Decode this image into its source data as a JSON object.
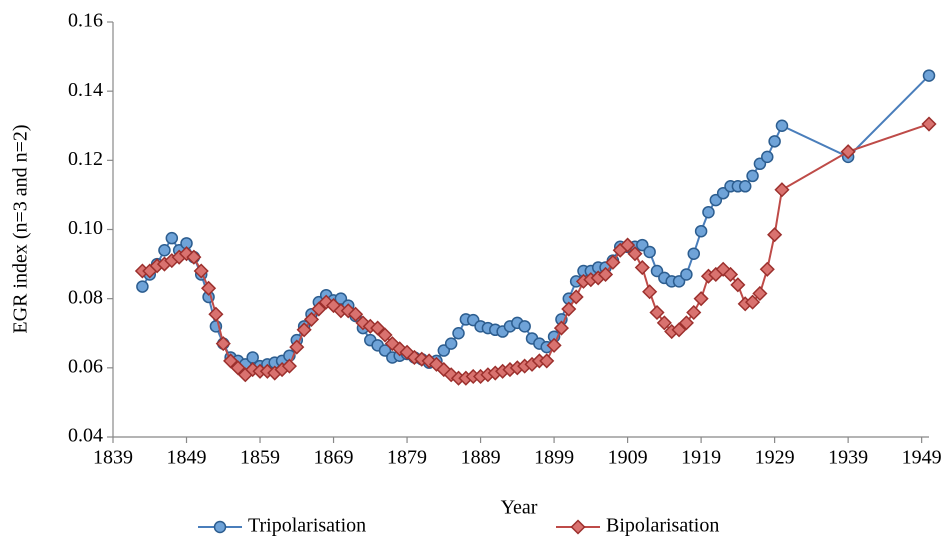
{
  "chart_data": {
    "type": "line",
    "x_label": "Year",
    "y_label": "EGR index (n=3 and n=2)",
    "x": [
      1843,
      1844,
      1845,
      1846,
      1847,
      1848,
      1849,
      1850,
      1851,
      1852,
      1853,
      1854,
      1855,
      1856,
      1857,
      1858,
      1859,
      1860,
      1861,
      1862,
      1863,
      1864,
      1865,
      1866,
      1867,
      1868,
      1869,
      1870,
      1871,
      1872,
      1873,
      1874,
      1875,
      1876,
      1877,
      1878,
      1879,
      1880,
      1881,
      1882,
      1883,
      1884,
      1885,
      1886,
      1887,
      1888,
      1889,
      1890,
      1891,
      1892,
      1893,
      1894,
      1895,
      1896,
      1897,
      1898,
      1899,
      1900,
      1901,
      1902,
      1903,
      1904,
      1905,
      1906,
      1907,
      1908,
      1909,
      1910,
      1911,
      1912,
      1913,
      1914,
      1915,
      1916,
      1917,
      1918,
      1919,
      1920,
      1921,
      1922,
      1923,
      1924,
      1925,
      1926,
      1927,
      1928,
      1929,
      1930,
      1939,
      1950
    ],
    "series": [
      {
        "name": "Tripolarisation",
        "color": "#4a7ebb",
        "marker_fill": "#6fa3d8",
        "marker_stroke": "#2c5d8f",
        "marker": "circle",
        "values": [
          0.0835,
          0.087,
          0.09,
          0.094,
          0.0975,
          0.094,
          0.096,
          0.092,
          0.087,
          0.0805,
          0.072,
          0.067,
          0.063,
          0.062,
          0.061,
          0.063,
          0.0605,
          0.061,
          0.0615,
          0.062,
          0.0635,
          0.068,
          0.072,
          0.0755,
          0.079,
          0.081,
          0.0795,
          0.08,
          0.078,
          0.075,
          0.0715,
          0.068,
          0.0665,
          0.065,
          0.063,
          0.0635,
          0.064,
          0.063,
          0.0625,
          0.0615,
          0.062,
          0.065,
          0.067,
          0.07,
          0.074,
          0.0738,
          0.072,
          0.0715,
          0.071,
          0.0705,
          0.072,
          0.073,
          0.072,
          0.0685,
          0.067,
          0.066,
          0.069,
          0.074,
          0.08,
          0.085,
          0.088,
          0.088,
          0.089,
          0.089,
          0.091,
          0.095,
          0.095,
          0.095,
          0.0955,
          0.0935,
          0.088,
          0.086,
          0.085,
          0.085,
          0.087,
          0.093,
          0.0995,
          0.105,
          0.1085,
          0.1105,
          0.1125,
          0.1125,
          0.1125,
          0.1155,
          0.119,
          0.121,
          0.1255,
          0.13,
          0.121,
          0.1445
        ]
      },
      {
        "name": "Bipolarisation",
        "color": "#be4b48",
        "marker_fill": "#d9726f",
        "marker_stroke": "#9c302d",
        "marker": "diamond",
        "values": [
          0.088,
          0.088,
          0.0895,
          0.09,
          0.091,
          0.092,
          0.093,
          0.092,
          0.088,
          0.083,
          0.0755,
          0.067,
          0.062,
          0.06,
          0.058,
          0.0595,
          0.059,
          0.059,
          0.0585,
          0.0595,
          0.0605,
          0.066,
          0.071,
          0.074,
          0.077,
          0.079,
          0.078,
          0.0765,
          0.0765,
          0.0755,
          0.073,
          0.072,
          0.0715,
          0.0695,
          0.067,
          0.0655,
          0.0645,
          0.063,
          0.0625,
          0.062,
          0.061,
          0.0595,
          0.058,
          0.057,
          0.057,
          0.0575,
          0.0575,
          0.058,
          0.0585,
          0.059,
          0.0595,
          0.06,
          0.0605,
          0.061,
          0.062,
          0.062,
          0.0665,
          0.0715,
          0.077,
          0.0805,
          0.085,
          0.0855,
          0.086,
          0.087,
          0.0905,
          0.094,
          0.0955,
          0.093,
          0.089,
          0.082,
          0.076,
          0.073,
          0.0705,
          0.071,
          0.073,
          0.076,
          0.08,
          0.0865,
          0.087,
          0.0885,
          0.087,
          0.084,
          0.0785,
          0.079,
          0.0815,
          0.0885,
          0.0985,
          0.1115,
          0.1225,
          0.1305
        ]
      }
    ],
    "xlim": [
      1839,
      1950
    ],
    "xticks": [
      1839,
      1849,
      1859,
      1869,
      1879,
      1889,
      1899,
      1909,
      1919,
      1929,
      1939,
      1949
    ],
    "ylim": [
      0.04,
      0.16
    ],
    "yticks": [
      0.04,
      0.06,
      0.08,
      {
        "value": 0.1,
        "label": "0.10"
      },
      0.12,
      0.14,
      0.16
    ],
    "grid": false,
    "legend": "bottom"
  }
}
